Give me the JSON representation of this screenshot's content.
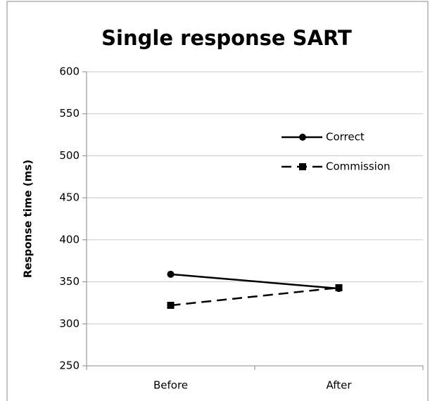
{
  "chart_data": {
    "type": "line",
    "title": "Single response SART",
    "y_label": "Response time (ms)",
    "categories": [
      "Before",
      "After"
    ],
    "series": [
      {
        "name": "Correct",
        "color": "#000000",
        "values": [
          359,
          342
        ],
        "marker": "circle",
        "dashed": false
      },
      {
        "name": "Commission",
        "color": "#000000",
        "values": [
          322,
          343
        ],
        "marker": "square",
        "dashed": true
      }
    ],
    "ylim": [
      250,
      600
    ],
    "yticks": [
      250,
      300,
      350,
      400,
      450,
      500,
      550,
      600
    ],
    "grid": true,
    "legend": "right"
  }
}
